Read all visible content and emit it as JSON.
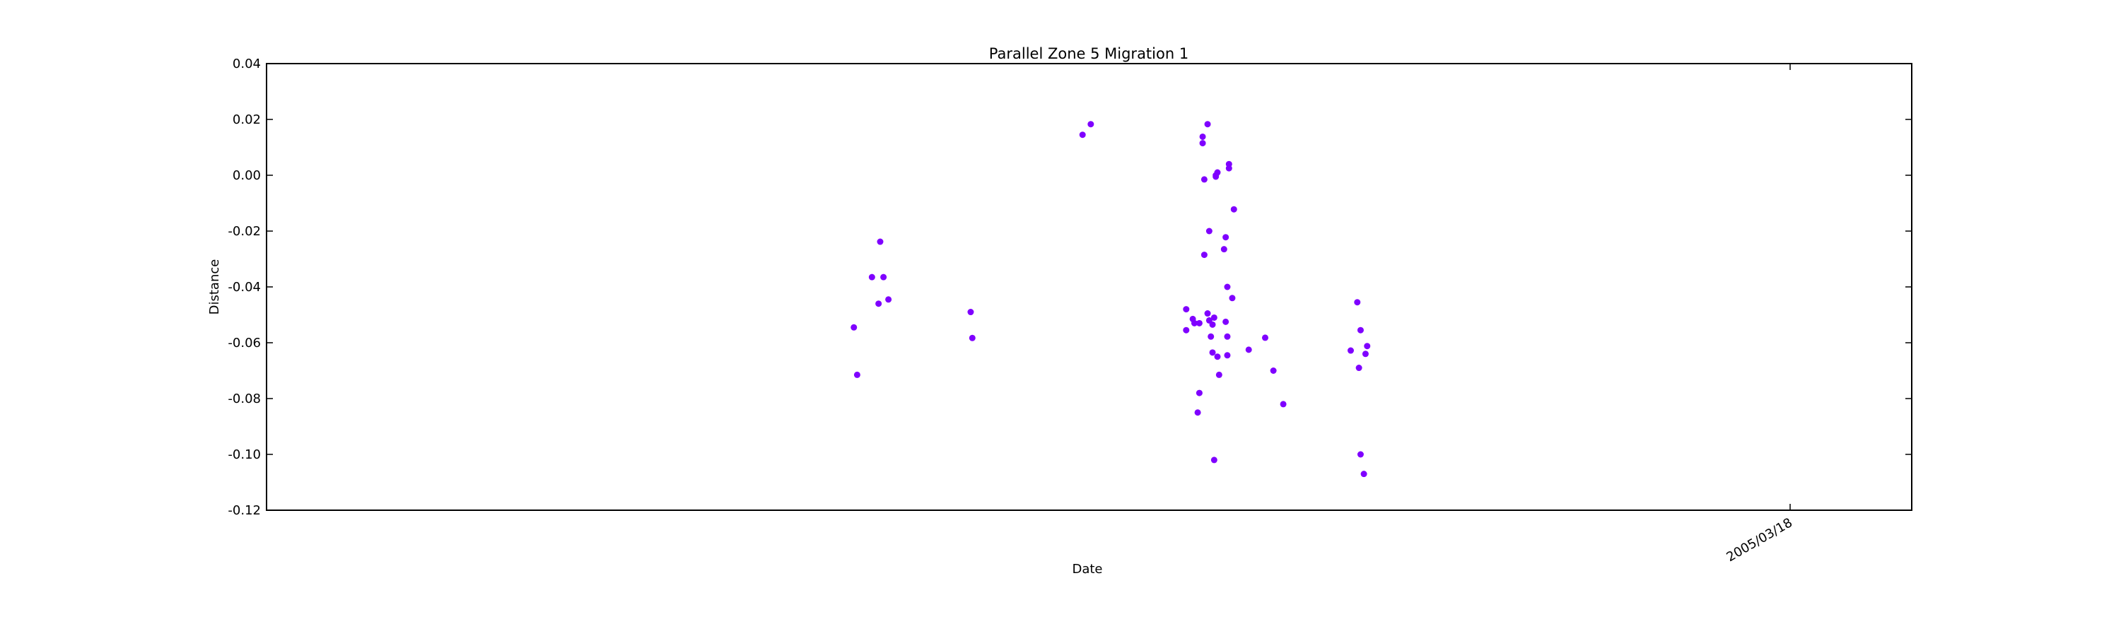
{
  "chart_data": {
    "type": "scatter",
    "title": "Parallel Zone 5 Migration 1",
    "xlabel": "Date",
    "ylabel": "Distance",
    "ylim": [
      -0.12,
      0.04
    ],
    "yticks": [
      "0.04",
      "0.02",
      "0.00",
      "-0.02",
      "-0.04",
      "-0.06",
      "-0.08",
      "-0.10",
      "-0.12"
    ],
    "xtick_labels": [
      "2005/03/18"
    ],
    "grid": false,
    "marker_color": "#7f00ff",
    "series": [
      {
        "points": [
          [
            0.357,
            -0.0545
          ],
          [
            0.359,
            -0.0715
          ],
          [
            0.368,
            -0.0365
          ],
          [
            0.372,
            -0.046
          ],
          [
            0.373,
            -0.0238
          ],
          [
            0.375,
            -0.0365
          ],
          [
            0.378,
            -0.0445
          ],
          [
            0.428,
            -0.049
          ],
          [
            0.429,
            -0.0583
          ],
          [
            0.496,
            0.0145
          ],
          [
            0.501,
            0.0183
          ],
          [
            0.559,
            -0.0555
          ],
          [
            0.559,
            -0.048
          ],
          [
            0.563,
            -0.0515
          ],
          [
            0.564,
            -0.053
          ],
          [
            0.566,
            -0.085
          ],
          [
            0.567,
            -0.078
          ],
          [
            0.567,
            -0.053
          ],
          [
            0.569,
            0.0138
          ],
          [
            0.569,
            0.0115
          ],
          [
            0.57,
            -0.0015
          ],
          [
            0.57,
            -0.0285
          ],
          [
            0.572,
            -0.0495
          ],
          [
            0.572,
            0.0183
          ],
          [
            0.573,
            -0.052
          ],
          [
            0.573,
            -0.02
          ],
          [
            0.574,
            -0.0578
          ],
          [
            0.575,
            -0.0535
          ],
          [
            0.575,
            -0.0635
          ],
          [
            0.576,
            -0.102
          ],
          [
            0.576,
            -0.051
          ],
          [
            0.577,
            0.0
          ],
          [
            0.577,
            -0.0005
          ],
          [
            0.578,
            0.001
          ],
          [
            0.578,
            -0.065
          ],
          [
            0.579,
            -0.0715
          ],
          [
            0.582,
            -0.0265
          ],
          [
            0.583,
            -0.0222
          ],
          [
            0.583,
            -0.0525
          ],
          [
            0.584,
            -0.0578
          ],
          [
            0.584,
            -0.0645
          ],
          [
            0.584,
            -0.04
          ],
          [
            0.585,
            0.004
          ],
          [
            0.585,
            0.0025
          ],
          [
            0.587,
            -0.044
          ],
          [
            0.588,
            -0.0122
          ],
          [
            0.597,
            -0.0625
          ],
          [
            0.607,
            -0.0582
          ],
          [
            0.612,
            -0.07
          ],
          [
            0.618,
            -0.082
          ],
          [
            0.659,
            -0.0628
          ],
          [
            0.663,
            -0.0455
          ],
          [
            0.664,
            -0.069
          ],
          [
            0.665,
            -0.1
          ],
          [
            0.665,
            -0.0555
          ],
          [
            0.667,
            -0.107
          ],
          [
            0.668,
            -0.064
          ],
          [
            0.669,
            -0.0612
          ]
        ]
      }
    ]
  }
}
